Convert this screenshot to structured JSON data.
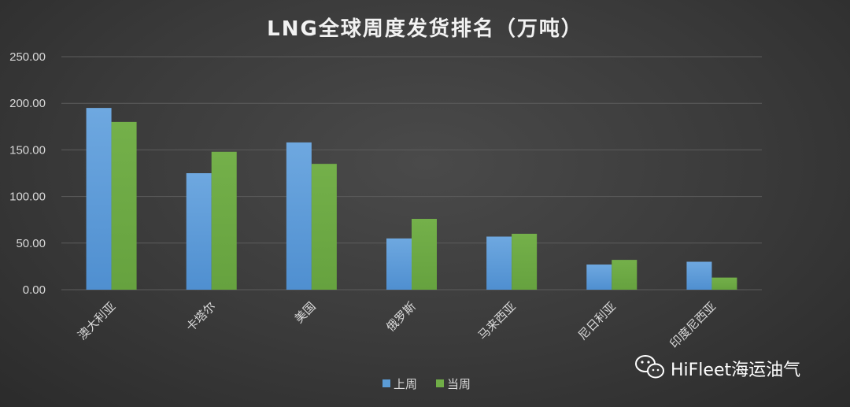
{
  "chart_data": {
    "type": "bar",
    "title": "LNG全球周度发货排名（万吨）",
    "categories": [
      "澳大利亚",
      "卡塔尔",
      "美国",
      "俄罗斯",
      "马来西亚",
      "尼日利亚",
      "印度尼西亚"
    ],
    "series": [
      {
        "name": "上周",
        "color": "#5b9bd5",
        "values": [
          195,
          125,
          158,
          55,
          57,
          27,
          30
        ]
      },
      {
        "name": "当周",
        "color": "#70ad47",
        "values": [
          180,
          148,
          135,
          76,
          60,
          32,
          13
        ]
      }
    ],
    "yticks": [
      "0.00",
      "50.00",
      "100.00",
      "150.00",
      "200.00",
      "250.00"
    ],
    "ylim": [
      0,
      250
    ],
    "grid": true,
    "legend": "bottom-center"
  },
  "watermark": {
    "text": "HiFleet海运油气",
    "icon": "wechat-icon"
  }
}
